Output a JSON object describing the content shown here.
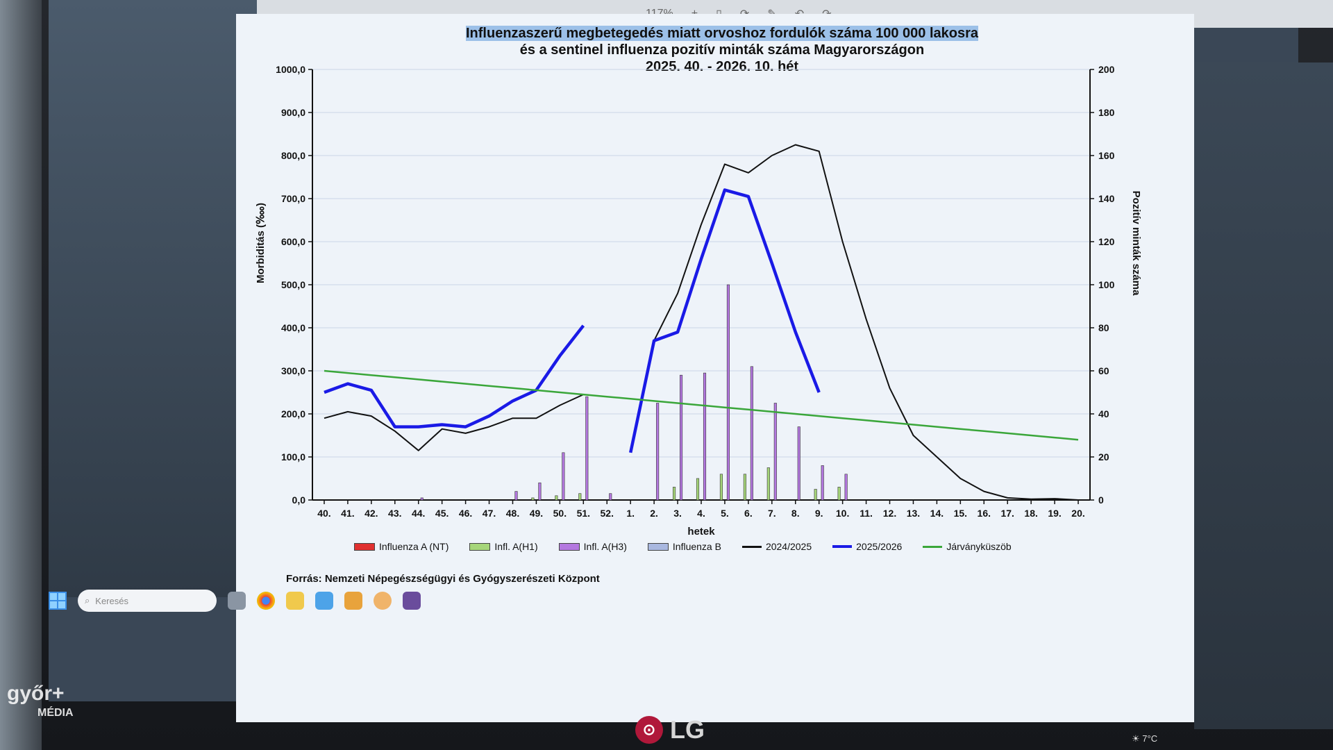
{
  "toolbar": {
    "zoom": "117%",
    "plus": "+"
  },
  "chart_title": {
    "line1": "Influenzaszerű megbetegedés miatt orvoshoz fordulók száma 100 000 lakosra",
    "line2": "és a sentinel influenza pozitív minták száma Magyarországon",
    "line3": "2025. 40. - 2026. 10. hét"
  },
  "source": "Forrás: Nemzeti Népegészségügyi és Gyógyszerészeti Központ",
  "legend": {
    "fluA_nt": "Influenza A (NT)",
    "h1": "Infl. A(H1)",
    "h3": "Infl. A(H3)",
    "fluB": "Influenza B",
    "s2425": "2024/2025",
    "s2526": "2025/2026",
    "threshold": "Járványküszöb"
  },
  "taskbar": {
    "search_placeholder": "Keresés"
  },
  "brand": {
    "monitor": "LG",
    "watermark_line1": "győr+",
    "watermark_line2": "MÉDIA"
  },
  "weather": "7°C",
  "colors": {
    "s2526": "#1a1ae6",
    "s2425": "#111111",
    "threshold": "#3aa63a",
    "h1": "#a6d67a",
    "h3": "#b478e0",
    "fluA_nt": "#e03030",
    "fluB": "#a9b8e0"
  },
  "chart_data": {
    "type": "line",
    "title": "Influenzaszerű megbetegedés miatt orvoshoz fordulók száma 100 000 lakosra és a sentinel influenza pozitív minták száma Magyarországon 2025. 40. - 2026. 10. hét",
    "xlabel": "hetek",
    "ylabel": "Morbiditás (‱)",
    "y2label": "Pozitív minták száma",
    "ylim": [
      0,
      1000
    ],
    "y2lim": [
      0,
      200
    ],
    "yticks": [
      "0,0",
      "100,0",
      "200,0",
      "300,0",
      "400,0",
      "500,0",
      "600,0",
      "700,0",
      "800,0",
      "900,0",
      "1000,0"
    ],
    "y2ticks": [
      "0",
      "20",
      "40",
      "60",
      "80",
      "100",
      "120",
      "140",
      "160",
      "180",
      "200"
    ],
    "categories": [
      "40.",
      "41.",
      "42.",
      "43.",
      "44.",
      "45.",
      "46.",
      "47.",
      "48.",
      "49.",
      "50.",
      "51.",
      "52.",
      "1.",
      "2.",
      "3.",
      "4.",
      "5.",
      "6.",
      "7.",
      "8.",
      "9.",
      "10.",
      "11.",
      "12.",
      "13.",
      "14.",
      "15.",
      "16.",
      "17.",
      "18.",
      "19.",
      "20."
    ],
    "series": [
      {
        "name": "2024/2025",
        "axis": "left",
        "values": [
          190,
          205,
          195,
          160,
          115,
          165,
          155,
          170,
          190,
          190,
          220,
          245,
          null,
          null,
          370,
          480,
          640,
          780,
          760,
          800,
          825,
          810,
          600,
          420,
          260,
          150,
          100,
          50,
          20,
          5,
          2,
          3,
          0
        ]
      },
      {
        "name": "2025/2026",
        "axis": "left",
        "values": [
          250,
          270,
          255,
          170,
          170,
          175,
          170,
          195,
          230,
          255,
          335,
          405,
          null,
          110,
          370,
          390,
          560,
          720,
          705,
          550,
          390,
          250,
          null,
          null,
          null,
          null,
          null,
          null,
          null,
          null,
          null,
          null,
          null
        ]
      },
      {
        "name": "Járványküszöb",
        "axis": "left",
        "values": [
          300,
          295,
          290,
          285,
          280,
          275,
          270,
          265,
          260,
          255,
          250,
          245,
          240,
          235,
          230,
          225,
          220,
          215,
          210,
          205,
          200,
          195,
          190,
          185,
          180,
          175,
          170,
          165,
          160,
          155,
          150,
          145,
          140
        ]
      },
      {
        "name": "Infl. A(H1)",
        "axis": "right",
        "type": "bar",
        "values": [
          0,
          0,
          0,
          0,
          0,
          0,
          0,
          0,
          0,
          1,
          2,
          3,
          0,
          0,
          0,
          6,
          10,
          12,
          12,
          15,
          0,
          5,
          6,
          0,
          0,
          0,
          0,
          0,
          0,
          0,
          0,
          0,
          0
        ]
      },
      {
        "name": "Infl. A(H3)",
        "axis": "right",
        "type": "bar",
        "values": [
          0,
          0,
          0,
          0,
          1,
          0,
          0,
          0,
          4,
          8,
          22,
          48,
          3,
          0,
          45,
          58,
          59,
          100,
          62,
          45,
          34,
          16,
          12,
          0,
          0,
          0,
          0,
          0,
          0,
          0,
          0,
          0,
          0
        ]
      }
    ],
    "grid": true,
    "legend_position": "bottom"
  }
}
